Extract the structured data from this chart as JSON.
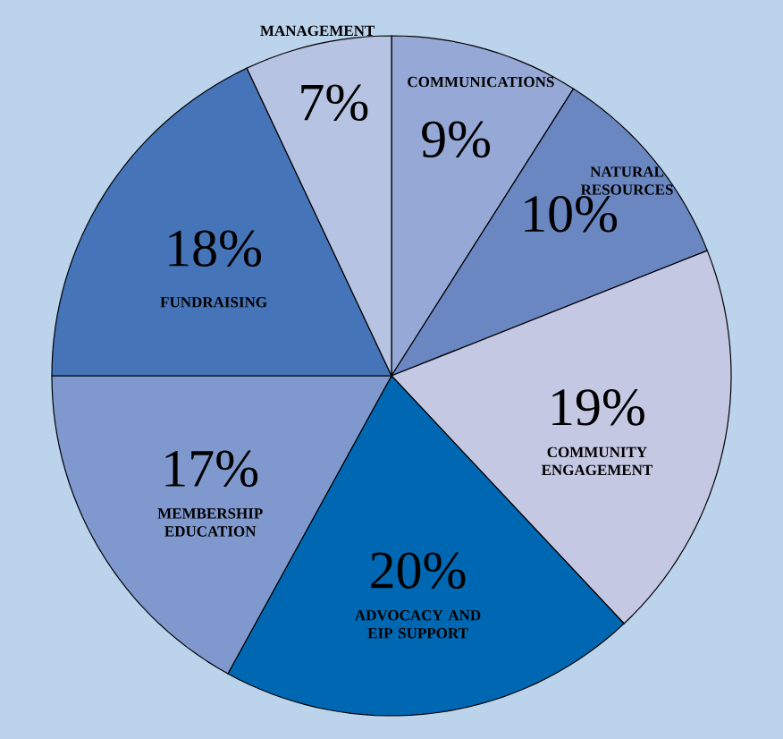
{
  "chart_data": {
    "type": "pie",
    "categories": [
      "COMMUNICATIONS",
      "NATURAL RESOURCES",
      "COMMUNITY ENGAGEMENT",
      "ADVOCACY AND EIP SUPPORT",
      "MEMBERSHIP EDUCATION",
      "FUNDRAISING",
      "MANAGEMENT"
    ],
    "values": [
      9,
      10,
      19,
      20,
      17,
      18,
      7
    ],
    "value_labels": [
      "9%",
      "10%",
      "19%",
      "20%",
      "17%",
      "18%",
      "7%"
    ],
    "colors": [
      "#96a9d6",
      "#6a87c2",
      "#c4c8e3",
      "#0068b3",
      "#7f99cf",
      "#4574b8",
      "#b7c3e2"
    ]
  }
}
